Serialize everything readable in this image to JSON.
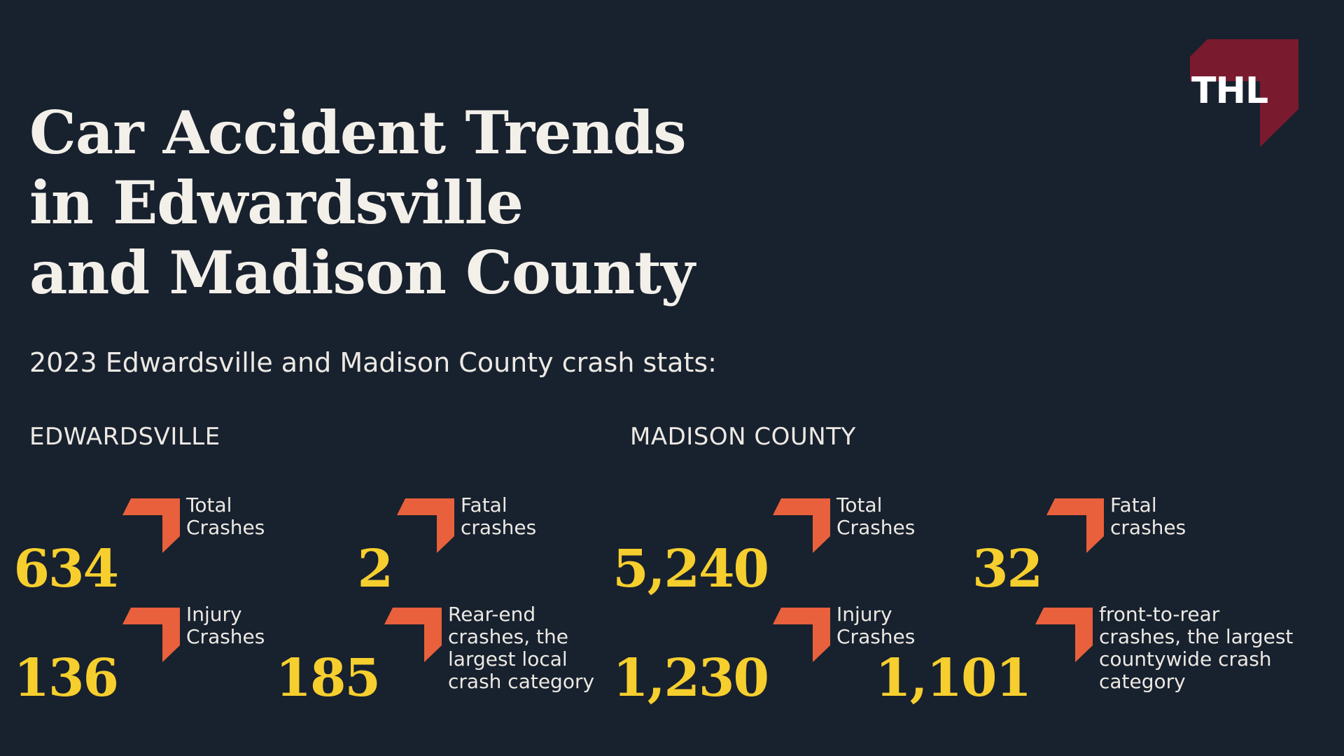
{
  "title_lines": [
    "Car Accident Trends",
    "in Edwardsville",
    "and Madison County"
  ],
  "subtitle": "2023 Edwardsville and Madison County crash stats:",
  "logo": {
    "text": "THL",
    "color": "#7a1a2e",
    "icon": "arrow-corner-logo"
  },
  "colors": {
    "background": "#18212e",
    "number": "#f6cf2e",
    "arrow": "#e8603c",
    "text": "#f3f0ea"
  },
  "sections": {
    "edwardsville": {
      "label": "EDWARDSVILLE",
      "stats": [
        {
          "value": "634",
          "label": "Total\n Crashes"
        },
        {
          "value": "2",
          "label": "Fatal\ncrashes"
        },
        {
          "value": "136",
          "label": "Injury\nCrashes"
        },
        {
          "value": "185",
          "label": "Rear-end\ncrashes, the\nlargest local\ncrash category"
        }
      ]
    },
    "madison": {
      "label": "MADISON COUNTY",
      "stats": [
        {
          "value": "5,240",
          "label": "Total\n Crashes"
        },
        {
          "value": "32",
          "label": "Fatal\ncrashes"
        },
        {
          "value": "1,230",
          "label": "Injury\nCrashes"
        },
        {
          "value": "1,101",
          "label": "front-to-rear\ncrashes, the largest\ncountywide crash\ncategory"
        }
      ]
    }
  }
}
